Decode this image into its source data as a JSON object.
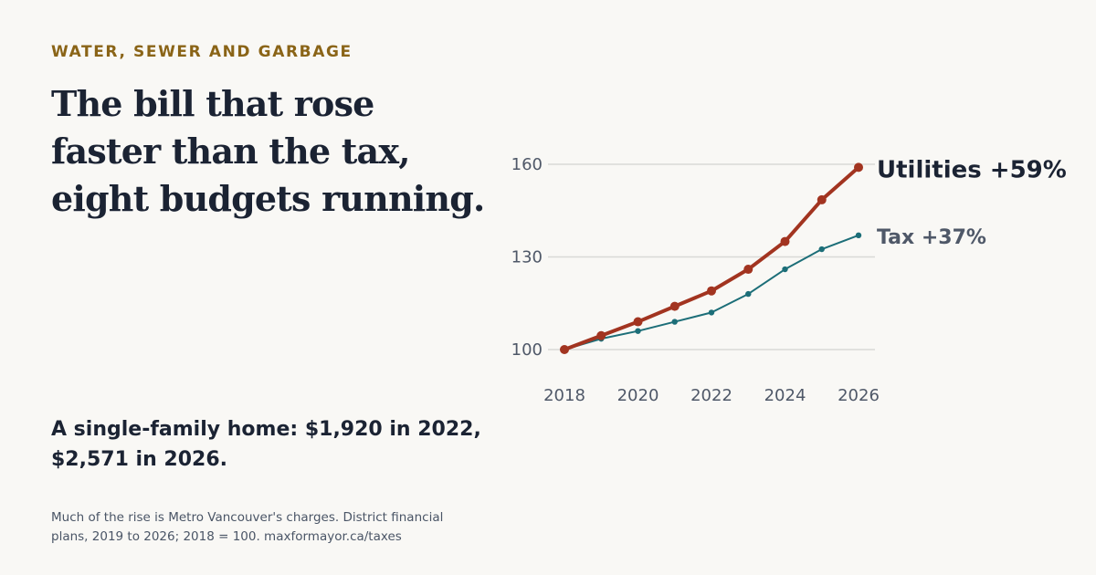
{
  "header": {
    "kicker": "WATER, SEWER AND GARBAGE",
    "headline_lines": [
      "The bill that rose",
      "faster than the tax,",
      "eight budgets running."
    ]
  },
  "subhead_lines": [
    "A single-family home: $1,920 in 2022,",
    "$2,571 in 2026."
  ],
  "footnote_lines": [
    "Much of the rise is Metro Vancouver's charges. District financial",
    "plans, 2019 to 2026; 2018 = 100. maxformayor.ca/taxes"
  ],
  "chart_data": {
    "type": "line",
    "x": [
      2018,
      2019,
      2020,
      2021,
      2022,
      2023,
      2024,
      2025,
      2026
    ],
    "xticks": [
      2018,
      2020,
      2022,
      2024,
      2026
    ],
    "xtick_labels": [
      "2018",
      "2020",
      "2022",
      "2024",
      "2026"
    ],
    "yticks": [
      100,
      130,
      160
    ],
    "ytick_labels": [
      "100",
      "130",
      "160"
    ],
    "xlim": [
      2018,
      2026
    ],
    "ylim": [
      100,
      160
    ],
    "grid": true,
    "series": [
      {
        "key": "utilities",
        "label": "Utilities +59%",
        "color": "#a23420",
        "values": [
          100,
          104.5,
          109,
          114,
          119,
          126,
          135,
          148.5,
          159
        ]
      },
      {
        "key": "tax",
        "label": "Tax +37%",
        "color": "#1c6e78",
        "values": [
          100,
          103.5,
          106,
          109,
          112,
          118,
          126,
          132.5,
          137
        ]
      }
    ]
  }
}
